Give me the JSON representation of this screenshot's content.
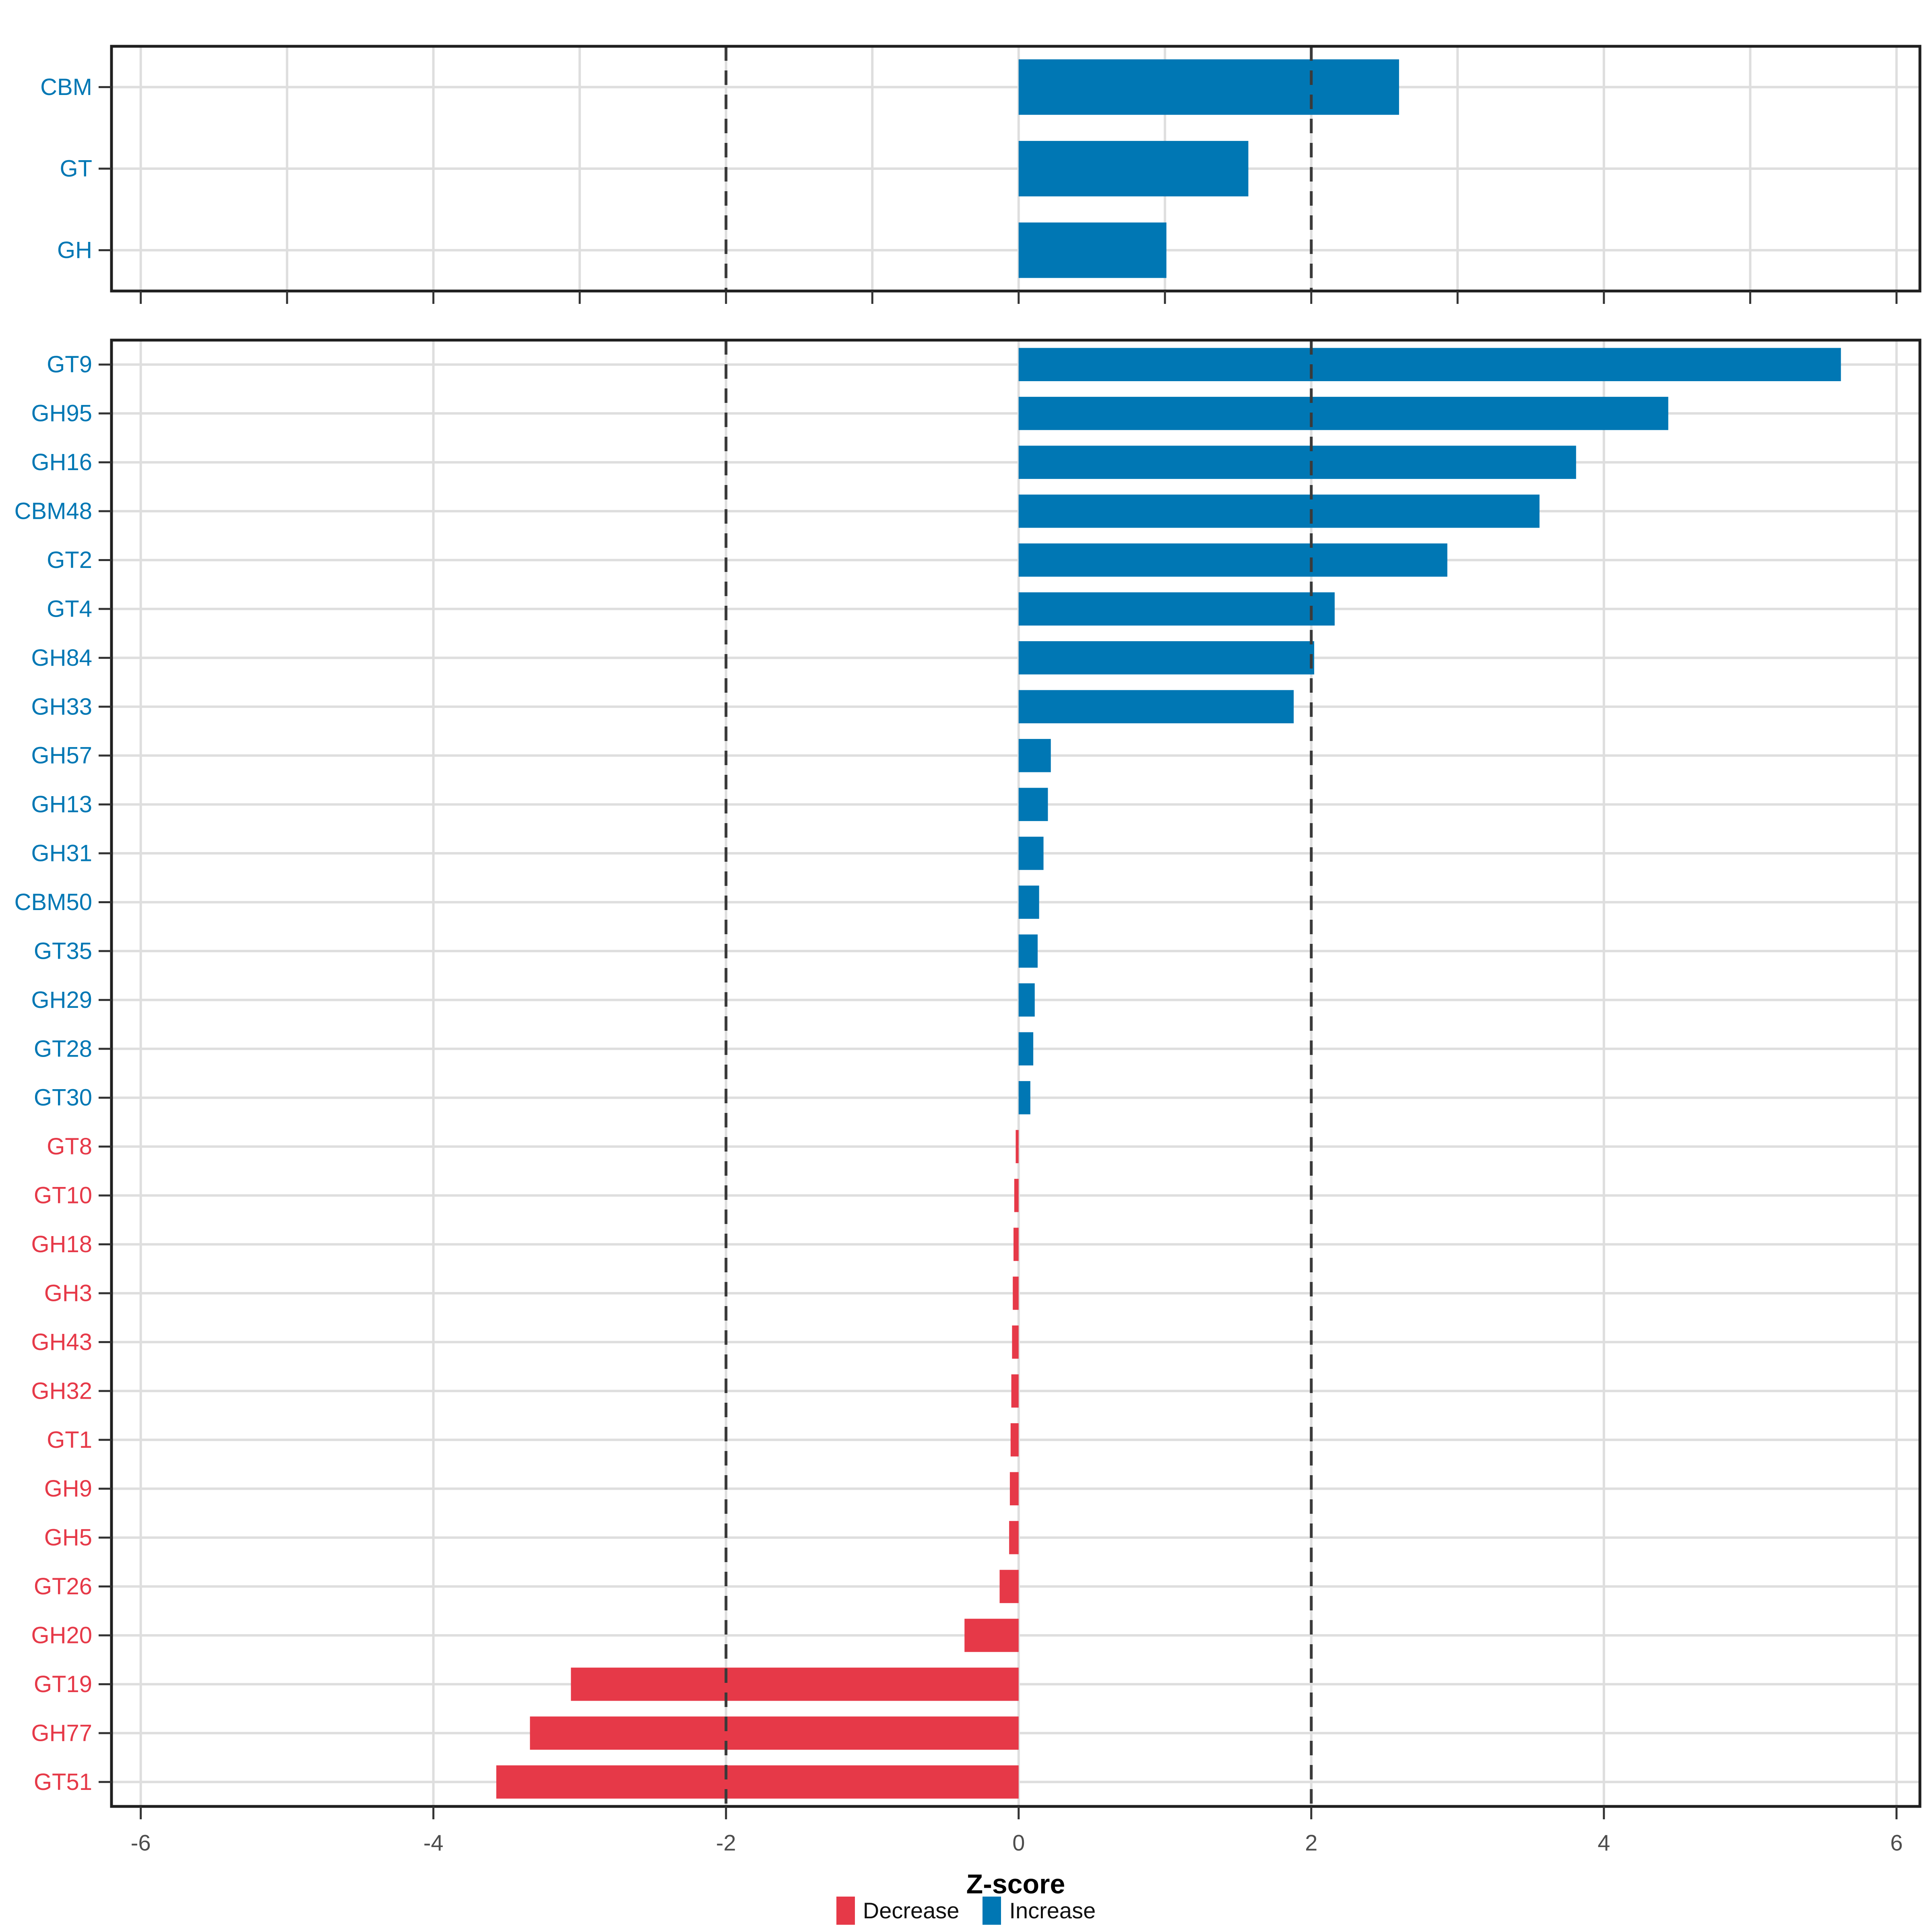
{
  "figure": {
    "background": "#FFFFFF"
  },
  "axis": {
    "title": "Z-score",
    "ticks": [
      {
        "value": -6,
        "label": "-6"
      },
      {
        "value": -4,
        "label": "-4"
      },
      {
        "value": -2,
        "label": "-2"
      },
      {
        "value": 0,
        "label": "0"
      },
      {
        "value": 2,
        "label": "2"
      },
      {
        "value": 4,
        "label": "4"
      },
      {
        "value": 6,
        "label": "6"
      }
    ],
    "range": [
      -6.2,
      6.16
    ]
  },
  "legend": {
    "items": [
      {
        "label": "Decrease",
        "color": "#E63948"
      },
      {
        "label": "Increase",
        "color": "#0077B4"
      }
    ]
  },
  "colors": {
    "increase": "#0077B4",
    "decrease": "#E63948",
    "grid": "#DEDEDE",
    "reference_line": "#3A3A3A",
    "axis_text": "#4D4D4D",
    "tick_mark": "#333333",
    "panel_border": "#1F1F1F"
  },
  "chart_data": [
    {
      "type": "bar",
      "orientation": "horizontal",
      "panel": "top",
      "categories": [
        "CBM",
        "GT",
        "GH"
      ],
      "values": [
        2.6,
        1.57,
        1.01
      ],
      "xlim": [
        -6.2,
        6.16
      ],
      "grid_x_interval": 1,
      "tick_interval": 1,
      "show_x_tick_labels": false,
      "reference_lines": [
        -2,
        2
      ],
      "grid": true
    },
    {
      "type": "bar",
      "orientation": "horizontal",
      "panel": "bottom",
      "categories": [
        "GT9",
        "GH95",
        "GH16",
        "CBM48",
        "GT2",
        "GT4",
        "GH84",
        "GH33",
        "GH57",
        "GH13",
        "GH31",
        "CBM50",
        "GT35",
        "GH29",
        "GT28",
        "GT30",
        "GT8",
        "GT10",
        "GH18",
        "GH3",
        "GH43",
        "GH32",
        "GT1",
        "GH9",
        "GH5",
        "GT26",
        "GH20",
        "GT19",
        "GH77",
        "GT51"
      ],
      "values": [
        5.62,
        4.44,
        3.81,
        3.56,
        2.93,
        2.16,
        2.02,
        1.88,
        0.22,
        0.2,
        0.17,
        0.14,
        0.13,
        0.11,
        0.1,
        0.08,
        -0.02,
        -0.03,
        -0.035,
        -0.04,
        -0.045,
        -0.05,
        -0.055,
        -0.06,
        -0.065,
        -0.13,
        -0.37,
        -3.06,
        -3.34,
        -3.57
      ],
      "xlim": [
        -6.2,
        6.16
      ],
      "grid_x_interval": 2,
      "tick_interval": 2,
      "show_x_tick_labels": true,
      "xlabel": "Z-score",
      "reference_lines": [
        -2,
        2
      ],
      "grid": true,
      "legend_position": "bottom"
    }
  ]
}
